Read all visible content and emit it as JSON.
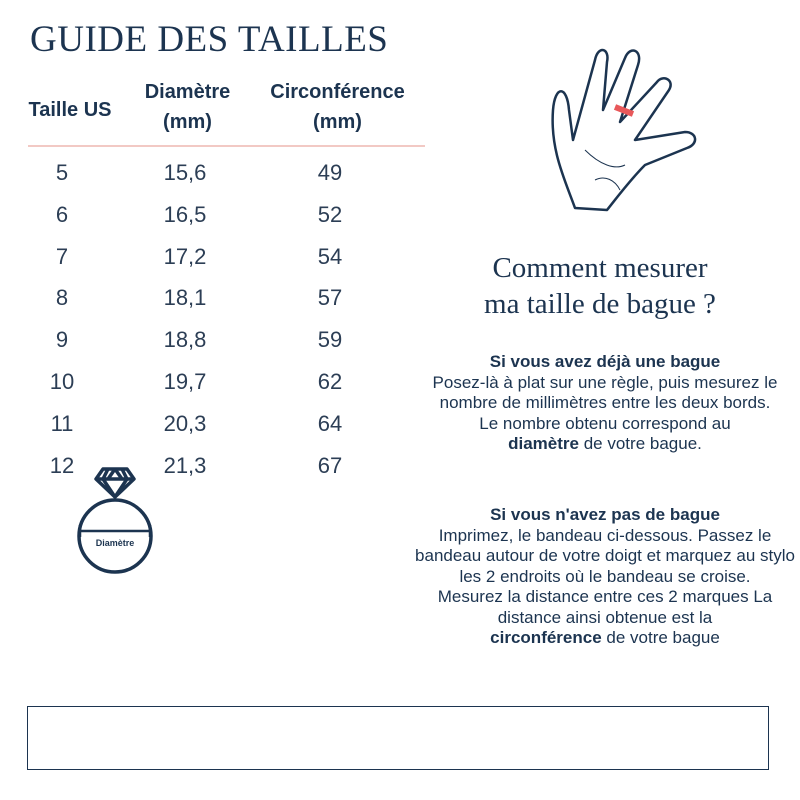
{
  "title": "GUIDE DES TAILLES",
  "table": {
    "headers": [
      {
        "line1": "Taille US"
      },
      {
        "line1": "Diamètre",
        "line2": "(mm)"
      },
      {
        "line1": "Circonférence",
        "line2": "(mm)"
      }
    ],
    "rows": [
      [
        "5",
        "15,6",
        "49"
      ],
      [
        "6",
        "16,5",
        "52"
      ],
      [
        "7",
        "17,2",
        "54"
      ],
      [
        "8",
        "18,1",
        "57"
      ],
      [
        "9",
        "18,8",
        "59"
      ],
      [
        "10",
        "19,7",
        "62"
      ],
      [
        "11",
        "20,3",
        "64"
      ],
      [
        "12",
        "21,3",
        "67"
      ]
    ]
  },
  "ring_label": "Diamètre",
  "howto": {
    "line1": "Comment mesurer",
    "line2": "ma taille de bague ?"
  },
  "section1": {
    "heading": "Si vous avez déjà une bague",
    "text1": "Posez-là à plat sur une règle, puis mesurez le nombre de millimètres entre les deux bords.",
    "text2": "Le nombre obtenu correspond au",
    "bold": "diamètre",
    "text3": " de votre bague."
  },
  "section2": {
    "heading": "Si vous n'avez pas de bague",
    "text1": "Imprimez, le bandeau ci-dessous. Passez le bandeau autour de votre doigt et marquez au stylo les 2 endroits où le bandeau se croise.",
    "text2": "Mesurez la distance entre ces 2 marques La distance ainsi obtenue est la",
    "bold": "circonférence",
    "text3": " de votre bague"
  },
  "colors": {
    "navy": "#1c3450",
    "pink": "#f2c9c4",
    "band": "#e8585a"
  }
}
